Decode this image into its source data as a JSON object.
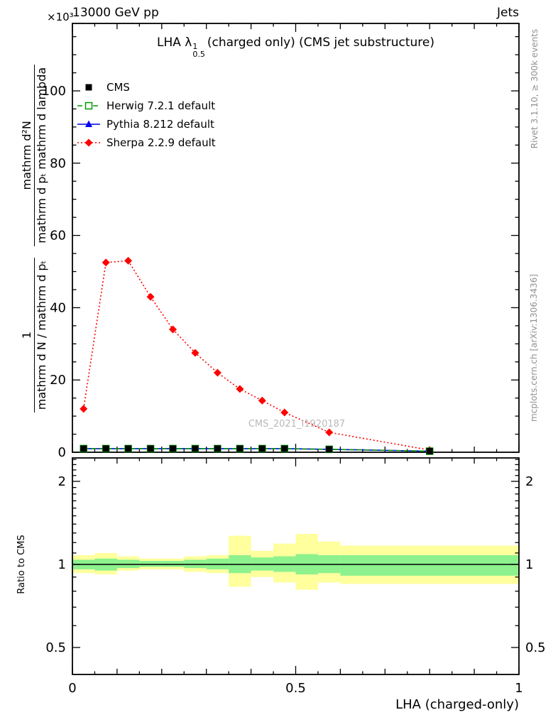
{
  "header": {
    "left": "13000 GeV pp",
    "right": "Jets"
  },
  "title": {
    "pre": "LHA λ",
    "sup": "1",
    "sub": "0.5",
    "post": "(charged only) (CMS jet substructure)"
  },
  "watermark": "CMS_2021_I1920187",
  "right_margin": {
    "top": "Rivet 3.1.10, ≥ 300k events",
    "bottom": "mcplots.cern.ch [arXiv:1306.3436]"
  },
  "yaxis_label": {
    "exponent": "×10³",
    "frac1_num": "1",
    "frac1_den": "mathrm d N / mathrm d pₜ",
    "frac2_num": "mathrm d²N",
    "frac2_den": "mathrm d pₜ mathrm d lambda"
  },
  "xaxis_label": "LHA (charged-only)",
  "chart_data": {
    "type": "line",
    "title": "LHA λ^1_0.5 (charged only) (CMS jet substructure)",
    "xlabel": "LHA (charged-only)",
    "ylabel": "1/(dN/dpT) d²N/(dpT dlambda) ×10³",
    "x": [
      0.025,
      0.075,
      0.125,
      0.175,
      0.225,
      0.275,
      0.325,
      0.375,
      0.425,
      0.475,
      0.575,
      0.8
    ],
    "series": [
      {
        "name": "CMS",
        "marker": "square-filled",
        "color": "#000000",
        "line": "none",
        "values": [
          1,
          1,
          1,
          1,
          1,
          1,
          1,
          1,
          1,
          1,
          0.8,
          0.3
        ]
      },
      {
        "name": "Herwig 7.2.1 default",
        "marker": "square-open",
        "color": "#009900",
        "line": "dashed",
        "values": [
          1,
          1,
          1,
          1,
          1,
          1,
          1,
          1,
          1,
          1,
          0.8,
          0.3
        ]
      },
      {
        "name": "Pythia 8.212 default",
        "marker": "triangle-filled",
        "color": "#0000ee",
        "line": "solid",
        "values": [
          1,
          1,
          1,
          1,
          1,
          1,
          1,
          1,
          1,
          1,
          0.8,
          0.3
        ]
      },
      {
        "name": "Sherpa 2.2.9 default",
        "marker": "diamond-filled",
        "color": "#ff0000",
        "line": "dotted",
        "values": [
          12,
          52.5,
          53,
          43,
          34,
          27.5,
          22,
          17.5,
          14.3,
          11,
          5.5,
          0.6
        ]
      }
    ],
    "main_axis": {
      "ticks": [
        0,
        20,
        40,
        60,
        80,
        100
      ],
      "tick_labels": [
        "0",
        "20",
        "40",
        "60",
        "80",
        "100"
      ],
      "minor_step": 5,
      "range": [
        0,
        100
      ],
      "exponent": "×10³"
    },
    "x_axis": {
      "ticks": [
        0,
        0.5,
        1
      ],
      "tick_labels": [
        "0",
        "0.5",
        "1"
      ],
      "minor_step": 0.05,
      "range": [
        0,
        1
      ]
    },
    "ratio": {
      "ylabel": "Ratio to CMS",
      "ticks": [
        0.5,
        1,
        2
      ],
      "tick_labels": [
        "0.5",
        "1",
        "2"
      ],
      "line_y": 1,
      "outer_color": "#ffff9e",
      "inner_color": "#8df28d",
      "bins": [
        [
          0.0,
          0.05,
          0.93,
          1.08,
          0.96,
          1.04
        ],
        [
          0.05,
          0.1,
          0.92,
          1.1,
          0.95,
          1.05
        ],
        [
          0.1,
          0.15,
          0.95,
          1.07,
          0.97,
          1.04
        ],
        [
          0.15,
          0.2,
          0.96,
          1.05,
          0.98,
          1.03
        ],
        [
          0.2,
          0.25,
          0.96,
          1.05,
          0.98,
          1.03
        ],
        [
          0.25,
          0.3,
          0.94,
          1.07,
          0.97,
          1.04
        ],
        [
          0.3,
          0.35,
          0.93,
          1.08,
          0.96,
          1.05
        ],
        [
          0.35,
          0.4,
          0.83,
          1.27,
          0.93,
          1.08
        ],
        [
          0.4,
          0.45,
          0.9,
          1.12,
          0.95,
          1.06
        ],
        [
          0.45,
          0.5,
          0.86,
          1.19,
          0.94,
          1.07
        ],
        [
          0.5,
          0.55,
          0.81,
          1.29,
          0.92,
          1.09
        ],
        [
          0.55,
          0.6,
          0.86,
          1.21,
          0.93,
          1.08
        ],
        [
          0.6,
          1.0,
          0.85,
          1.17,
          0.91,
          1.08
        ]
      ]
    }
  },
  "colors": {
    "cms": "#000000",
    "herwig": "#009900",
    "pythia": "#0000ee",
    "sherpa": "#ff0000",
    "band_outer": "#ffff9e",
    "band_inner": "#8df28d",
    "margin_text": "#909090",
    "watermark": "#b9b9b9"
  }
}
